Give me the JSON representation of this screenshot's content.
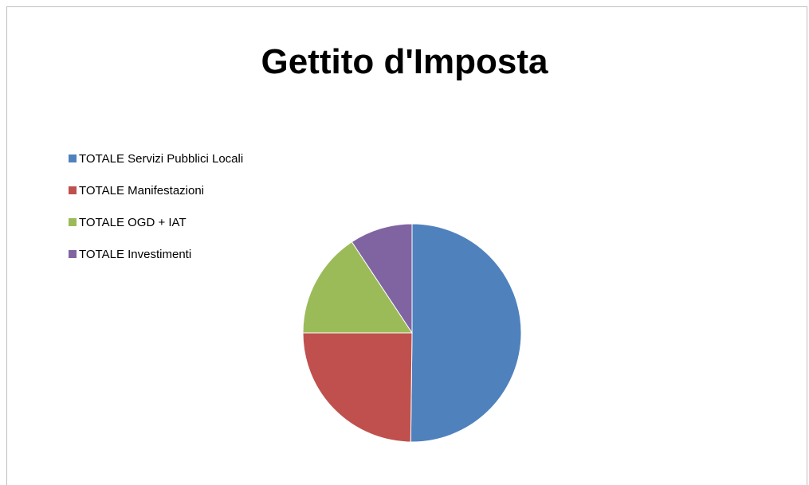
{
  "chart_data": {
    "type": "pie",
    "title": "Gettito d'Imposta",
    "legend_position": "left",
    "start_angle": "12 o'clock, clockwise",
    "slices": [
      {
        "label": "TOTALE Servizi Pubblici Locali",
        "value": 50.2,
        "color": "#4F81BD"
      },
      {
        "label": "TOTALE Manifestazioni",
        "value": 24.8,
        "color": "#C0504D"
      },
      {
        "label": "TOTALE OGD + IAT",
        "value": 15.7,
        "color": "#9BBB59"
      },
      {
        "label": "TOTALE Investimenti",
        "value": 9.3,
        "color": "#8064A2"
      }
    ]
  }
}
